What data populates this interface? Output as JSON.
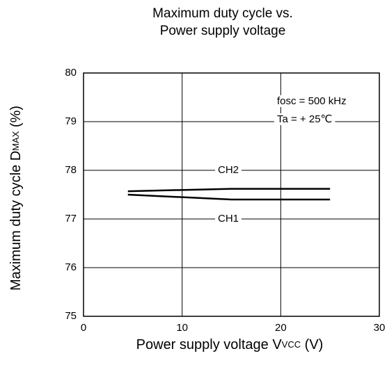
{
  "chart_data": {
    "type": "line",
    "title": [
      "Maximum duty cycle vs.",
      "Power supply voltage"
    ],
    "xlabel": [
      "Power supply voltage V",
      "VCC",
      " (V)"
    ],
    "ylabel": [
      "Maximum duty cycle D",
      "MAX",
      " (%)"
    ],
    "x": [
      4.5,
      15,
      25
    ],
    "series": [
      {
        "name": "CH2",
        "color": "#000000",
        "values": [
          77.57,
          77.62,
          77.62
        ]
      },
      {
        "name": "CH1",
        "color": "#000000",
        "values": [
          77.5,
          77.4,
          77.4
        ]
      }
    ],
    "annotations": [
      "fosc = 500 kHz",
      "Ta = + 25℃"
    ],
    "xlim": [
      0,
      30
    ],
    "xticks": [
      0,
      10,
      20,
      30
    ],
    "ylim": [
      75,
      80
    ],
    "yticks": [
      75,
      76,
      77,
      78,
      79,
      80
    ],
    "grid": true
  }
}
